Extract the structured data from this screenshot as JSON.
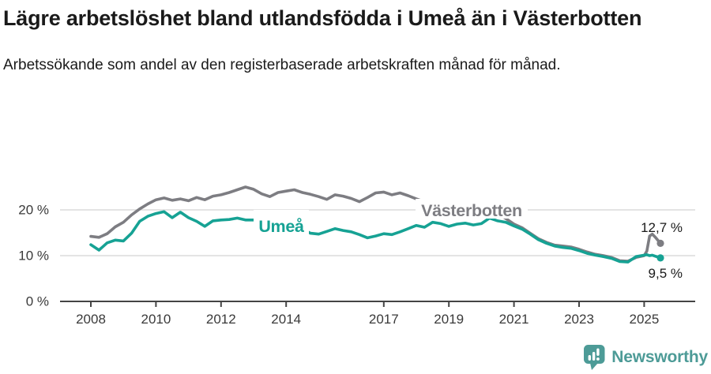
{
  "header": {
    "title": "Lägre arbetslöshet bland utlandsfödda i Umeå än i Västerbotten",
    "subtitle": "Arbetssökande som andel av den registerbaserade arbetskraften månad för månad."
  },
  "chart_data": {
    "type": "line",
    "title": "Lägre arbetslöshet bland utlandsfödda i Umeå än i Västerbotten",
    "xlabel": "",
    "ylabel": "",
    "ylim": [
      0,
      27
    ],
    "grid": "horizontal",
    "legend_position": "inline-labels",
    "y_ticks": [
      {
        "value": 0,
        "label": "0 %"
      },
      {
        "value": 10,
        "label": "10 %"
      },
      {
        "value": 20,
        "label": "20 %"
      }
    ],
    "x_ticks": [
      {
        "year": 2008,
        "label": "2008"
      },
      {
        "year": 2010,
        "label": "2010"
      },
      {
        "year": 2012,
        "label": "2012"
      },
      {
        "year": 2014,
        "label": "2014"
      },
      {
        "year": 2017,
        "label": "2017"
      },
      {
        "year": 2019,
        "label": "2019"
      },
      {
        "year": 2021,
        "label": "2021"
      },
      {
        "year": 2023,
        "label": "2023"
      },
      {
        "year": 2025,
        "label": "2025"
      }
    ],
    "x": [
      2008,
      2008.25,
      2008.5,
      2008.75,
      2009,
      2009.25,
      2009.5,
      2009.75,
      2010,
      2010.25,
      2010.5,
      2010.75,
      2011,
      2011.25,
      2011.5,
      2011.75,
      2012,
      2012.25,
      2012.5,
      2012.75,
      2013,
      2013.25,
      2013.5,
      2013.75,
      2014,
      2014.25,
      2014.5,
      2014.75,
      2015,
      2015.25,
      2015.5,
      2015.75,
      2016,
      2016.25,
      2016.5,
      2016.75,
      2017,
      2017.25,
      2017.5,
      2017.75,
      2018,
      2018.25,
      2018.5,
      2018.75,
      2019,
      2019.25,
      2019.5,
      2019.75,
      2020,
      2020.25,
      2020.5,
      2020.75,
      2021,
      2021.25,
      2021.5,
      2021.75,
      2022,
      2022.25,
      2022.5,
      2022.75,
      2023,
      2023.25,
      2023.5,
      2023.75,
      2024,
      2024.25,
      2024.5,
      2024.75,
      2025,
      2025.083,
      2025.167,
      2025.25,
      2025.333,
      2025.417,
      2025.5
    ],
    "series": [
      {
        "name": "Västerbotten",
        "color": "#7d7d82",
        "end_label": "12,7 %",
        "values": [
          14.2,
          14.0,
          14.8,
          16.3,
          17.3,
          18.9,
          20.2,
          21.3,
          22.2,
          22.6,
          22.1,
          22.4,
          22.0,
          22.7,
          22.2,
          23.0,
          23.3,
          23.8,
          24.4,
          25.0,
          24.5,
          23.5,
          22.9,
          23.8,
          24.1,
          24.4,
          23.8,
          23.4,
          22.9,
          22.3,
          23.3,
          23.0,
          22.5,
          21.8,
          22.7,
          23.7,
          23.9,
          23.3,
          23.7,
          23.1,
          22.4,
          21.8,
          21.3,
          20.8,
          20.3,
          19.9,
          19.6,
          19.3,
          19.0,
          19.8,
          19.2,
          18.1,
          16.9,
          16.1,
          14.9,
          13.7,
          12.9,
          12.3,
          12.1,
          11.9,
          11.4,
          10.8,
          10.3,
          10.0,
          9.6,
          8.9,
          8.8,
          9.6,
          10.0,
          11.0,
          14.3,
          14.7,
          14.1,
          13.4,
          12.7
        ]
      },
      {
        "name": "Umeå",
        "color": "#16a294",
        "end_label": "9,5 %",
        "values": [
          12.4,
          11.2,
          12.8,
          13.4,
          13.2,
          14.9,
          17.5,
          18.6,
          19.2,
          19.6,
          18.3,
          19.5,
          18.3,
          17.5,
          16.4,
          17.6,
          17.8,
          17.9,
          18.2,
          17.8,
          17.8,
          17.5,
          16.6,
          15.7,
          15.3,
          15.6,
          15.8,
          14.9,
          14.7,
          15.3,
          15.9,
          15.5,
          15.2,
          14.6,
          13.9,
          14.3,
          14.8,
          14.6,
          15.2,
          15.9,
          16.6,
          16.2,
          17.3,
          17.0,
          16.4,
          16.9,
          17.1,
          16.7,
          17.0,
          18.2,
          17.6,
          17.3,
          16.5,
          15.8,
          14.7,
          13.5,
          12.7,
          12.1,
          11.8,
          11.6,
          11.1,
          10.5,
          10.1,
          9.8,
          9.4,
          8.7,
          8.6,
          9.8,
          10.1,
          10.2,
          10.0,
          10.1,
          9.9,
          9.7,
          9.5
        ]
      }
    ],
    "colors": {
      "grid": "#dcdcdc",
      "axis": "#444444",
      "tick_label": "#3a3a3a",
      "value_label": "#1a1a1a"
    }
  },
  "footer": {
    "brand": "Newsworthy",
    "brand_color": "#4d9b97",
    "icon": "newsworthy-speech-bubble-barchart-icon"
  }
}
